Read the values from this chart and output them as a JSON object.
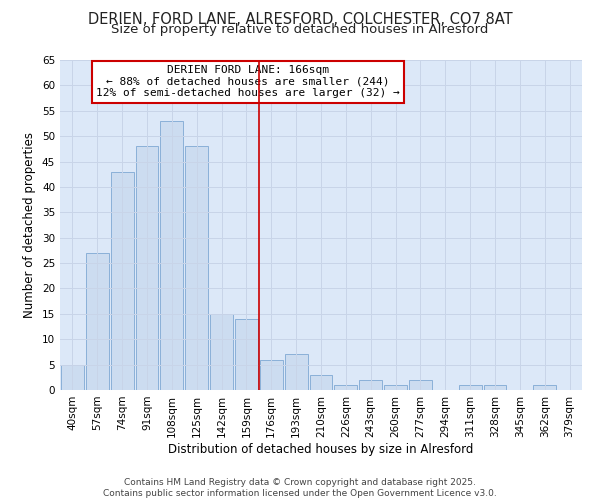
{
  "title_line1": "DERIEN, FORD LANE, ALRESFORD, COLCHESTER, CO7 8AT",
  "title_line2": "Size of property relative to detached houses in Alresford",
  "xlabel": "Distribution of detached houses by size in Alresford",
  "ylabel": "Number of detached properties",
  "bar_labels": [
    "40sqm",
    "57sqm",
    "74sqm",
    "91sqm",
    "108sqm",
    "125sqm",
    "142sqm",
    "159sqm",
    "176sqm",
    "193sqm",
    "210sqm",
    "226sqm",
    "243sqm",
    "260sqm",
    "277sqm",
    "294sqm",
    "311sqm",
    "328sqm",
    "345sqm",
    "362sqm",
    "379sqm"
  ],
  "bar_values": [
    5,
    27,
    43,
    48,
    53,
    48,
    15,
    14,
    6,
    7,
    3,
    1,
    2,
    1,
    2,
    0,
    1,
    1,
    0,
    1,
    0
  ],
  "bar_color": "#ccdcf0",
  "bar_edgecolor": "#8ab0d8",
  "vline_position": 7.5,
  "vline_color": "#cc0000",
  "annotation_text": "DERIEN FORD LANE: 166sqm\n← 88% of detached houses are smaller (244)\n12% of semi-detached houses are larger (32) →",
  "annotation_box_color": "#ffffff",
  "annotation_box_edgecolor": "#cc0000",
  "ylim": [
    0,
    65
  ],
  "yticks": [
    0,
    5,
    10,
    15,
    20,
    25,
    30,
    35,
    40,
    45,
    50,
    55,
    60,
    65
  ],
  "grid_color": "#c8d4e8",
  "background_color": "#dce8f8",
  "fig_background": "#ffffff",
  "footer_line1": "Contains HM Land Registry data © Crown copyright and database right 2025.",
  "footer_line2": "Contains public sector information licensed under the Open Government Licence v3.0.",
  "title_fontsize": 10.5,
  "subtitle_fontsize": 9.5,
  "axis_label_fontsize": 8.5,
  "tick_fontsize": 7.5,
  "footer_fontsize": 6.5,
  "annot_fontsize": 8
}
